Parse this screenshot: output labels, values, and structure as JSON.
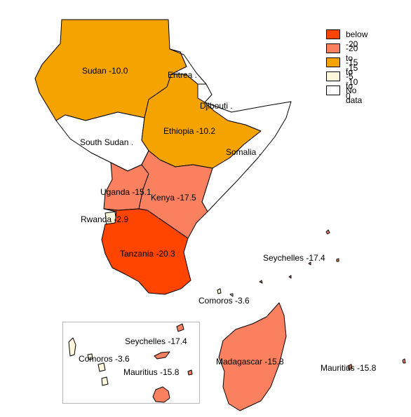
{
  "legend": {
    "items": [
      {
        "label": "below -20",
        "color": "#ff4500"
      },
      {
        "label": "-20 to -15",
        "color": "#fa8060"
      },
      {
        "label": "-15 to -10",
        "color": "#f5a300"
      },
      {
        "label": "-5 to 0",
        "color": "#fff8dc"
      },
      {
        "label": "No data",
        "color": "#ffffff"
      }
    ]
  },
  "countries": {
    "sudan": "Sudan -10.0",
    "eritrea": "Eritrea .",
    "djibouti": "Djibouti .",
    "ethiopia": "Ethiopia -10.2",
    "south_sudan": "South Sudan .",
    "somalia": "Somalia .",
    "uganda": "Uganda -15.1",
    "kenya": "Kenya -17.5",
    "rwanda": "Rwanda -2.9",
    "tanzania": "Tanzania -20.3",
    "seychelles": "Seychelles -17.4",
    "comoros": "Comoros -3.6",
    "madagascar": "Madagascar -15.8",
    "mauritius": "Mauritius -15.8"
  },
  "inset": {
    "seychelles": "Seychelles -17.4",
    "comoros": "Comoros -3.6",
    "mauritius": "Mauritius -15.8"
  }
}
